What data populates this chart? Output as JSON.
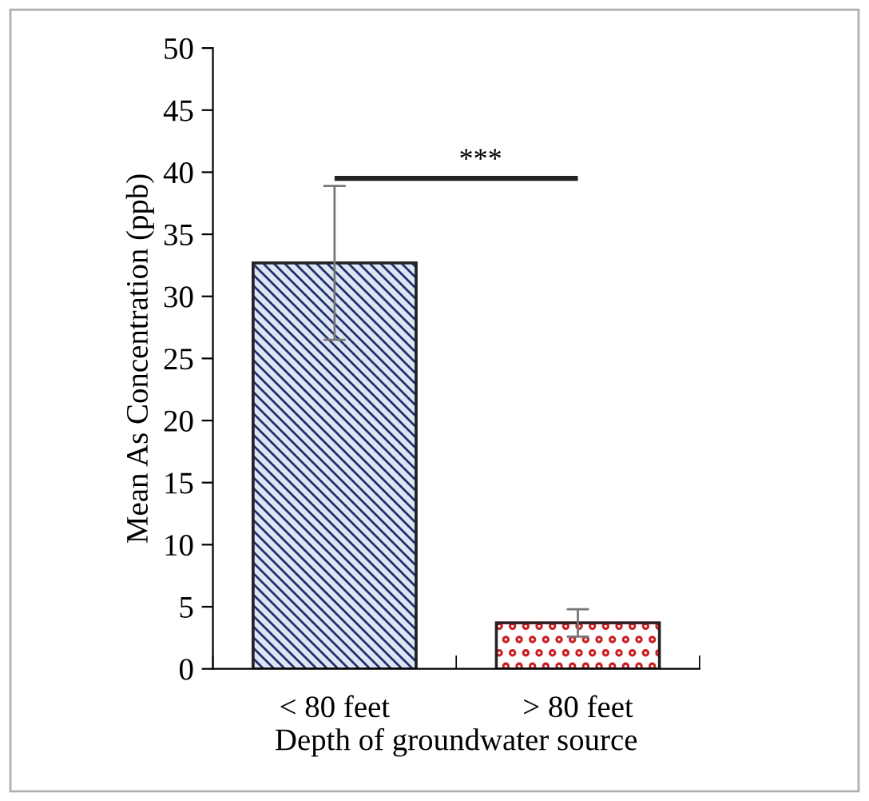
{
  "chart_data": {
    "type": "bar",
    "xlabel": "Depth of groundwater source",
    "ylabel": "Mean As Concentration (ppb)",
    "categories": [
      "< 80 feet",
      "> 80 feet"
    ],
    "values": [
      32.7,
      3.7
    ],
    "errors": [
      6.2,
      1.1
    ],
    "colors": [
      "#23306e",
      "#cc1f24"
    ],
    "ylim": [
      0,
      50
    ],
    "yticks": [
      0,
      5,
      10,
      15,
      20,
      25,
      30,
      35,
      40,
      45,
      50
    ],
    "annotations": [
      "***"
    ],
    "grid": false,
    "legend": false
  }
}
